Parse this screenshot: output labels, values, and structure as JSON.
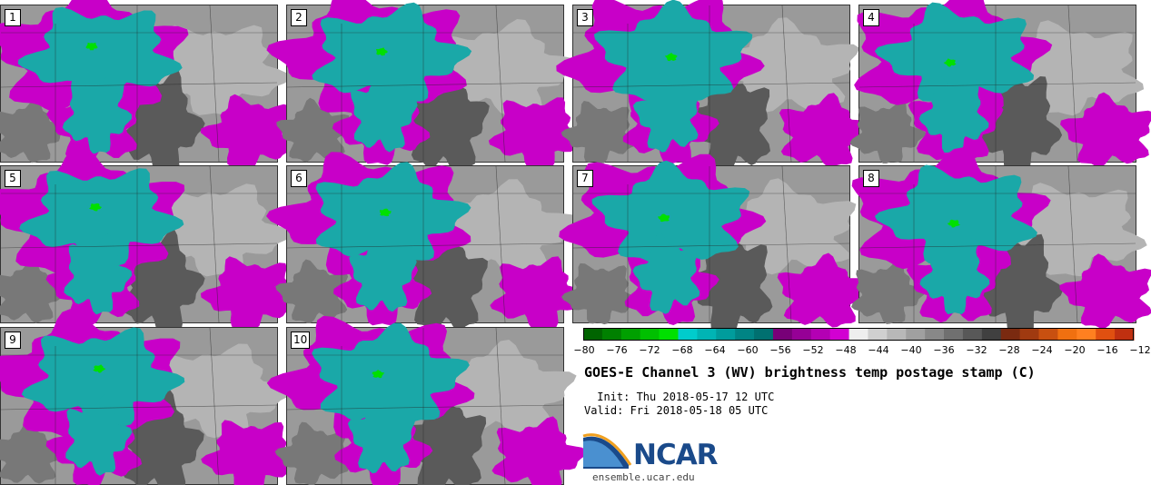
{
  "title": "GOES-E Channel 3 (WV) brightness temp postage stamp (C)",
  "init": " Init: Thu 2018-05-17 12 UTC",
  "valid": "Valid: Fri 2018-05-18 05 UTC",
  "logo": {
    "name": "NCAR",
    "site": "ensemble.ucar.edu"
  },
  "panels": [
    "1",
    "2",
    "3",
    "4",
    "5",
    "6",
    "7",
    "8",
    "9",
    "10"
  ],
  "colorbar": {
    "ticks": [
      "−80",
      "−76",
      "−72",
      "−68",
      "−64",
      "−60",
      "−56",
      "−52",
      "−48",
      "−44",
      "−40",
      "−36",
      "−32",
      "−28",
      "−24",
      "−20",
      "−16",
      "−12"
    ],
    "colors": [
      "#006400",
      "#008000",
      "#00a000",
      "#00c000",
      "#00e000",
      "#00cccc",
      "#00b4b4",
      "#009c9c",
      "#008484",
      "#007070",
      "#780078",
      "#960096",
      "#b400b4",
      "#d200d2",
      "#eeeeee",
      "#d0d0d0",
      "#b8b8b8",
      "#a0a0a0",
      "#888888",
      "#707070",
      "#585858",
      "#404040",
      "#7a2a10",
      "#a03a10",
      "#c85010",
      "#f07010",
      "#ff8020",
      "#e05010",
      "#c03010"
    ]
  },
  "palette": {
    "cold": "#1aa8a8",
    "moist": "#c800c8",
    "dry": "#5a5a5a",
    "mid": "#9a9a9a"
  }
}
